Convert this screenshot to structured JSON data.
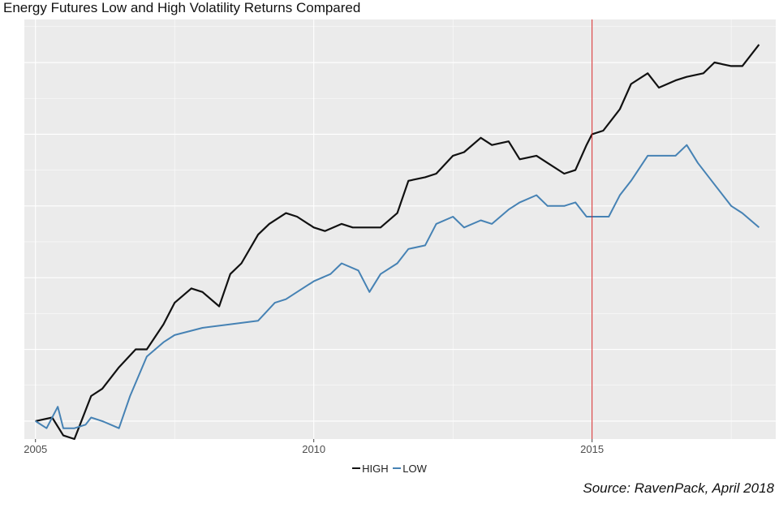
{
  "title": "Energy Futures Low and High Volatility Returns Compared",
  "source": "Source: RavenPack, April 2018",
  "colors": {
    "panel_bg": "#ebebeb",
    "grid": "#ffffff",
    "high": "#111111",
    "low": "#4682b4",
    "marker": "#d62728"
  },
  "chart_data": {
    "type": "line",
    "title": "Energy Futures Low and High Volatility Returns Compared",
    "xlabel": "",
    "ylabel": "",
    "x_ticks": [
      "2005",
      "2010",
      "2015"
    ],
    "x_tick_values": [
      2005,
      2010,
      2015
    ],
    "xlim": [
      2004.8,
      2018.3
    ],
    "ylim": [
      -0.25,
      5.6
    ],
    "y_tick_labels_shown": false,
    "grid": true,
    "legend_position": "bottom",
    "vertical_line_x": 2015.0,
    "series": [
      {
        "name": "HIGH",
        "color": "#111111",
        "x": [
          2005.0,
          2005.3,
          2005.5,
          2005.7,
          2005.8,
          2006.0,
          2006.2,
          2006.5,
          2006.8,
          2007.0,
          2007.3,
          2007.5,
          2007.8,
          2008.0,
          2008.3,
          2008.5,
          2008.7,
          2009.0,
          2009.2,
          2009.5,
          2009.7,
          2010.0,
          2010.2,
          2010.5,
          2010.7,
          2011.0,
          2011.2,
          2011.5,
          2011.7,
          2012.0,
          2012.2,
          2012.5,
          2012.7,
          2013.0,
          2013.2,
          2013.5,
          2013.7,
          2014.0,
          2014.2,
          2014.5,
          2014.7,
          2014.9,
          2015.0,
          2015.2,
          2015.5,
          2015.7,
          2016.0,
          2016.2,
          2016.5,
          2016.7,
          2017.0,
          2017.2,
          2017.5,
          2017.7,
          2018.0
        ],
        "values": [
          0.0,
          0.05,
          -0.2,
          -0.25,
          -0.05,
          0.35,
          0.45,
          0.75,
          1.0,
          1.0,
          1.35,
          1.65,
          1.85,
          1.8,
          1.6,
          2.05,
          2.2,
          2.6,
          2.75,
          2.9,
          2.85,
          2.7,
          2.65,
          2.75,
          2.7,
          2.7,
          2.7,
          2.9,
          3.35,
          3.4,
          3.45,
          3.7,
          3.75,
          3.95,
          3.85,
          3.9,
          3.65,
          3.7,
          3.6,
          3.45,
          3.5,
          3.85,
          4.0,
          4.05,
          4.35,
          4.7,
          4.85,
          4.65,
          4.75,
          4.8,
          4.85,
          5.0,
          4.95,
          4.95,
          5.25
        ]
      },
      {
        "name": "LOW",
        "color": "#4682b4",
        "x": [
          2005.0,
          2005.2,
          2005.4,
          2005.5,
          2005.7,
          2005.9,
          2006.0,
          2006.2,
          2006.5,
          2006.7,
          2007.0,
          2007.3,
          2007.5,
          2008.0,
          2008.5,
          2009.0,
          2009.3,
          2009.5,
          2009.7,
          2010.0,
          2010.3,
          2010.5,
          2010.8,
          2011.0,
          2011.2,
          2011.5,
          2011.7,
          2012.0,
          2012.2,
          2012.5,
          2012.7,
          2013.0,
          2013.2,
          2013.5,
          2013.7,
          2014.0,
          2014.2,
          2014.5,
          2014.7,
          2014.9,
          2015.0,
          2015.3,
          2015.5,
          2015.7,
          2016.0,
          2016.2,
          2016.5,
          2016.7,
          2016.9,
          2017.2,
          2017.5,
          2017.7,
          2018.0
        ],
        "values": [
          0.0,
          -0.1,
          0.2,
          -0.1,
          -0.1,
          -0.05,
          0.05,
          0.0,
          -0.1,
          0.35,
          0.9,
          1.1,
          1.2,
          1.3,
          1.35,
          1.4,
          1.65,
          1.7,
          1.8,
          1.95,
          2.05,
          2.2,
          2.1,
          1.8,
          2.05,
          2.2,
          2.4,
          2.45,
          2.75,
          2.85,
          2.7,
          2.8,
          2.75,
          2.95,
          3.05,
          3.15,
          3.0,
          3.0,
          3.05,
          2.85,
          2.85,
          2.85,
          3.15,
          3.35,
          3.7,
          3.7,
          3.7,
          3.85,
          3.6,
          3.3,
          3.0,
          2.9,
          2.7
        ]
      }
    ]
  }
}
